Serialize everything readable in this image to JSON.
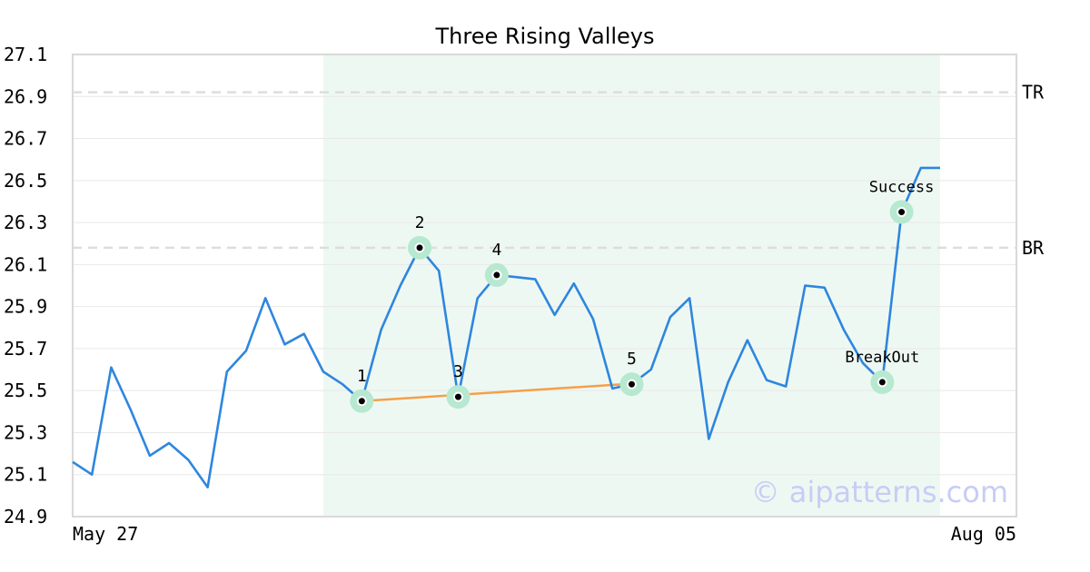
{
  "chart_data": {
    "type": "line",
    "title": "Three Rising Valleys",
    "xlabel": "",
    "ylabel": "",
    "ylim": [
      24.9,
      27.1
    ],
    "yticks": [
      "27.1",
      "26.9",
      "26.7",
      "26.5",
      "26.3",
      "26.1",
      "25.9",
      "25.7",
      "25.5",
      "25.3",
      "25.1",
      "24.9"
    ],
    "x_start_label": "May 27",
    "x_end_label": "Aug 05",
    "grid": true,
    "values": [
      25.16,
      25.1,
      25.61,
      25.41,
      25.19,
      25.25,
      25.17,
      25.04,
      25.59,
      25.69,
      25.94,
      25.72,
      25.77,
      25.59,
      25.53,
      25.45,
      25.79,
      26.0,
      26.18,
      26.07,
      25.47,
      25.94,
      26.05,
      26.04,
      26.03,
      25.86,
      26.01,
      25.84,
      25.51,
      25.53,
      25.6,
      25.85,
      25.94,
      25.27,
      25.54,
      25.74,
      25.55,
      25.52,
      26.0,
      25.99,
      25.79,
      25.63,
      25.54,
      26.35,
      26.56,
      26.56
    ],
    "highlight_range": [
      13,
      45
    ],
    "levels": [
      {
        "label": "TR",
        "value": 26.92
      },
      {
        "label": "BR",
        "value": 26.18
      }
    ],
    "trendline": {
      "from": [
        15,
        25.45
      ],
      "to": [
        28.5,
        25.53
      ]
    },
    "points": [
      {
        "label": "1",
        "index": 15,
        "value": 25.45
      },
      {
        "label": "2",
        "index": 18,
        "value": 26.18
      },
      {
        "label": "3",
        "index": 20,
        "value": 25.47
      },
      {
        "label": "4",
        "index": 22,
        "value": 26.05
      },
      {
        "label": "5",
        "index": 29,
        "value": 25.53
      },
      {
        "label": "BreakOut",
        "index": 42,
        "value": 25.54
      },
      {
        "label": "Success",
        "index": 43,
        "value": 26.35
      }
    ],
    "colors": {
      "line": "#2e86de",
      "trend": "#f4a04a",
      "highlight": "#eef8f3",
      "marker_halo": "#b7e8d0",
      "level": "#dddddd",
      "grid": "#e8e8e8"
    }
  },
  "watermark": "© aipatterns.com"
}
